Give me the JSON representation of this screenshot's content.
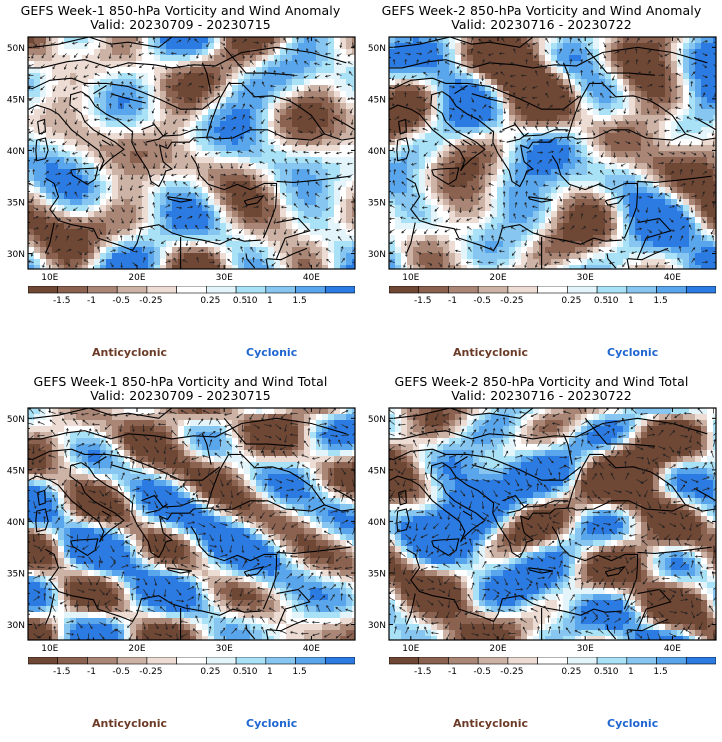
{
  "panels": [
    {
      "id": "week1-anomaly",
      "title_line1": "GEFS Week-1 850-hPa Vorticity and Wind Anomaly",
      "title_line2": "Valid: 20230709 - 20230715"
    },
    {
      "id": "week2-anomaly",
      "title_line1": "GEFS Week-2 850-hPa Vorticity and Wind Anomaly",
      "title_line2": "Valid: 20230716 - 20230722"
    },
    {
      "id": "week1-total",
      "title_line1": "GEFS Week-1 850-hPa Vorticity and Wind Total",
      "title_line2": "Valid: 20230709 - 20230715"
    },
    {
      "id": "week2-total",
      "title_line1": "GEFS Week-2 850-hPa Vorticity and Wind Total",
      "title_line2": "Valid: 20230716 - 20230722"
    }
  ],
  "map": {
    "lat_labels": [
      "50N",
      "45N",
      "40N",
      "35N",
      "30N"
    ],
    "lon_labels": [
      "10E",
      "20E",
      "30E",
      "40E"
    ]
  },
  "colorbar": {
    "tick_labels": [
      "-1.5",
      "-1",
      "-0.5",
      "-0.25",
      "0.25",
      "0.5",
      "1",
      "1.5"
    ],
    "scale_label": "10",
    "scale_exponent": "-5",
    "colors": [
      "#6f4735",
      "#8b6250",
      "#a98676",
      "#cdb3a6",
      "#ecdcd3",
      "#ffffff",
      "#e3f5fb",
      "#a9e2f6",
      "#86c6f0",
      "#5aa6ec",
      "#2b7be2"
    ]
  },
  "legend": {
    "anticyclonic": "Anticyclonic",
    "cyclonic": "Cyclonic"
  }
}
